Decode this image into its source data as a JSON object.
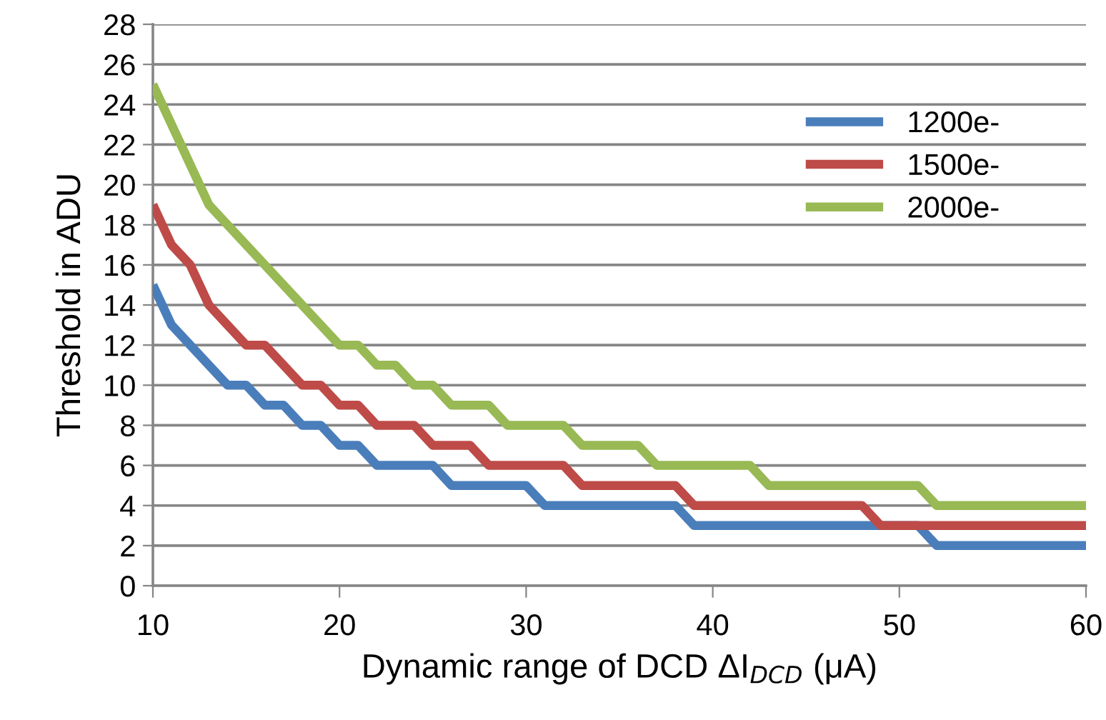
{
  "chart_data": {
    "type": "line",
    "xlabel": "Dynamic range of DCD ΔI$_{DCD}$ (μA)",
    "ylabel": "Threshold in ADU",
    "xlim": [
      10,
      60
    ],
    "xticks": [
      10,
      20,
      30,
      40,
      50,
      60
    ],
    "ylim": [
      0,
      28
    ],
    "yticks": [
      0,
      2,
      4,
      6,
      8,
      10,
      12,
      14,
      16,
      18,
      20,
      22,
      24,
      26,
      28
    ],
    "grid": "y",
    "legend": "top right",
    "marker": "none",
    "line_style": "solid",
    "series": [
      {
        "name": "1200e-",
        "color": "#4a7ebb",
        "x": [
          10,
          11,
          14,
          15,
          16,
          17,
          18,
          19,
          20,
          21,
          22,
          25,
          26,
          30,
          31,
          38,
          39,
          51,
          52,
          60
        ],
        "values": [
          15,
          13,
          10,
          10,
          9,
          9,
          8,
          8,
          7,
          7,
          6,
          6,
          5,
          5,
          4,
          4,
          3,
          3,
          2,
          2
        ]
      },
      {
        "name": "1500e-",
        "color": "#be4b48",
        "x": [
          10,
          11,
          12,
          13,
          15,
          16,
          18,
          19,
          20,
          21,
          22,
          24,
          25,
          27,
          28,
          32,
          33,
          38,
          39,
          48,
          49,
          60
        ],
        "values": [
          19,
          17,
          16,
          14,
          12,
          12,
          10,
          10,
          9,
          9,
          8,
          8,
          7,
          7,
          6,
          6,
          5,
          5,
          4,
          4,
          3,
          3
        ]
      },
      {
        "name": "2000e-",
        "color": "#98b954",
        "x": [
          10,
          13,
          20,
          21,
          22,
          23,
          24,
          25,
          26,
          28,
          29,
          32,
          33,
          36,
          37,
          42,
          43,
          51,
          52,
          60
        ],
        "values": [
          25,
          19,
          12,
          12,
          11,
          11,
          10,
          10,
          9,
          9,
          8,
          8,
          7,
          7,
          6,
          6,
          5,
          5,
          4,
          4
        ]
      }
    ]
  }
}
